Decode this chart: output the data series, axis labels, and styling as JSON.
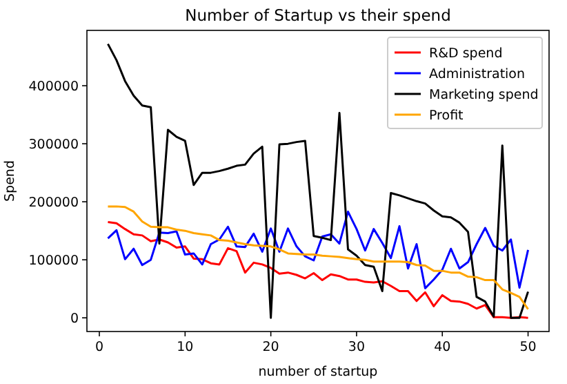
{
  "chart_data": {
    "type": "line",
    "title": "Number of Startup vs their spend",
    "xlabel": "number of startup",
    "ylabel": "Spend",
    "x": [
      1,
      2,
      3,
      4,
      5,
      6,
      7,
      8,
      9,
      10,
      11,
      12,
      13,
      14,
      15,
      16,
      17,
      18,
      19,
      20,
      21,
      22,
      23,
      24,
      25,
      26,
      27,
      28,
      29,
      30,
      31,
      32,
      33,
      34,
      35,
      36,
      37,
      38,
      39,
      40,
      41,
      42,
      43,
      44,
      45,
      46,
      47,
      48,
      49,
      50
    ],
    "xlim": [
      -1.45,
      52.45
    ],
    "xticks": [
      0,
      10,
      20,
      30,
      40,
      50
    ],
    "ylim": [
      -23589,
      495373
    ],
    "yticks": [
      0,
      100000,
      200000,
      300000,
      400000
    ],
    "legend": "top right",
    "series": [
      {
        "name": "R&D spend",
        "color": "#ff0000",
        "values": [
          165000,
          163000,
          153000,
          144000,
          142000,
          132000,
          135000,
          130000,
          121000,
          123000,
          102000,
          101000,
          94000,
          92000,
          120000,
          115000,
          78000,
          95000,
          92000,
          86000,
          76000,
          78000,
          74000,
          68000,
          77000,
          65000,
          75000,
          72000,
          66000,
          66000,
          62000,
          61000,
          63000,
          55000,
          46000,
          46000,
          29000,
          44000,
          20000,
          39000,
          29000,
          28000,
          24000,
          16000,
          22000,
          1000,
          1000,
          0,
          1000,
          0
        ]
      },
      {
        "name": "Administration",
        "color": "#0000ff",
        "values": [
          137000,
          151000,
          101000,
          119000,
          91000,
          100000,
          147000,
          146000,
          149000,
          109000,
          111000,
          92000,
          127000,
          135000,
          157000,
          123000,
          122000,
          145000,
          114000,
          154000,
          114000,
          154000,
          123000,
          106000,
          99000,
          140000,
          144000,
          128000,
          183000,
          153000,
          116000,
          153000,
          129000,
          103000,
          158000,
          85000,
          127000,
          51000,
          66000,
          83000,
          119000,
          85000,
          96000,
          127000,
          155000,
          124000,
          116000,
          135000,
          52000,
          117000
        ]
      },
      {
        "name": "Marketing spend",
        "color": "#000000",
        "values": [
          472000,
          444000,
          408000,
          383000,
          366000,
          363000,
          128000,
          324000,
          312000,
          305000,
          229000,
          250000,
          250000,
          253000,
          257000,
          262000,
          264000,
          283000,
          295000,
          0,
          299000,
          300000,
          303000,
          305000,
          141000,
          138000,
          134000,
          353000,
          118000,
          107000,
          91000,
          88000,
          46000,
          215000,
          211000,
          206000,
          201000,
          197000,
          185000,
          175000,
          173000,
          164000,
          148000,
          36000,
          28000,
          2000,
          297000,
          0,
          0,
          45000
        ]
      },
      {
        "name": "Profit",
        "color": "#ffa500",
        "values": [
          192000,
          192000,
          191000,
          183000,
          166000,
          157000,
          156000,
          156000,
          152000,
          150000,
          146000,
          144000,
          142000,
          134000,
          133000,
          130000,
          127000,
          125000,
          124000,
          123000,
          118000,
          111000,
          110000,
          109000,
          109000,
          107000,
          106000,
          105000,
          103000,
          101000,
          100000,
          97000,
          97000,
          97000,
          97000,
          96000,
          91000,
          90000,
          81000,
          81000,
          78000,
          78000,
          71000,
          70000,
          65000,
          65000,
          49000,
          43000,
          36000,
          15000
        ]
      }
    ]
  }
}
